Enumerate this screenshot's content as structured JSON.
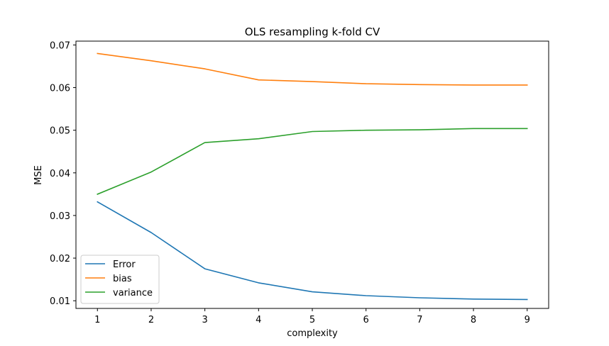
{
  "chart_data": {
    "type": "line",
    "title": "OLS resampling k-fold CV",
    "xlabel": "complexity",
    "ylabel": "MSE",
    "x": [
      1,
      2,
      3,
      4,
      5,
      6,
      7,
      8,
      9
    ],
    "xlim": [
      0.6,
      9.4
    ],
    "ylim": [
      0.0082,
      0.0709
    ],
    "xticks": [
      "1",
      "2",
      "3",
      "4",
      "5",
      "6",
      "7",
      "8",
      "9"
    ],
    "yticks": [
      "0.01",
      "0.02",
      "0.03",
      "0.04",
      "0.05",
      "0.06",
      "0.07"
    ],
    "grid": false,
    "legend_position": "lower-left",
    "series": [
      {
        "name": "Error",
        "color": "#1f77b4",
        "values": [
          0.0332,
          0.026,
          0.0175,
          0.0142,
          0.0121,
          0.0112,
          0.0107,
          0.0104,
          0.0103
        ]
      },
      {
        "name": "bias",
        "color": "#ff7f0e",
        "values": [
          0.068,
          0.0663,
          0.0644,
          0.0618,
          0.0614,
          0.0609,
          0.0607,
          0.0606,
          0.0606
        ]
      },
      {
        "name": "variance",
        "color": "#2ca02c",
        "values": [
          0.035,
          0.0402,
          0.0471,
          0.048,
          0.0497,
          0.05,
          0.0501,
          0.0504,
          0.0504
        ]
      }
    ]
  }
}
